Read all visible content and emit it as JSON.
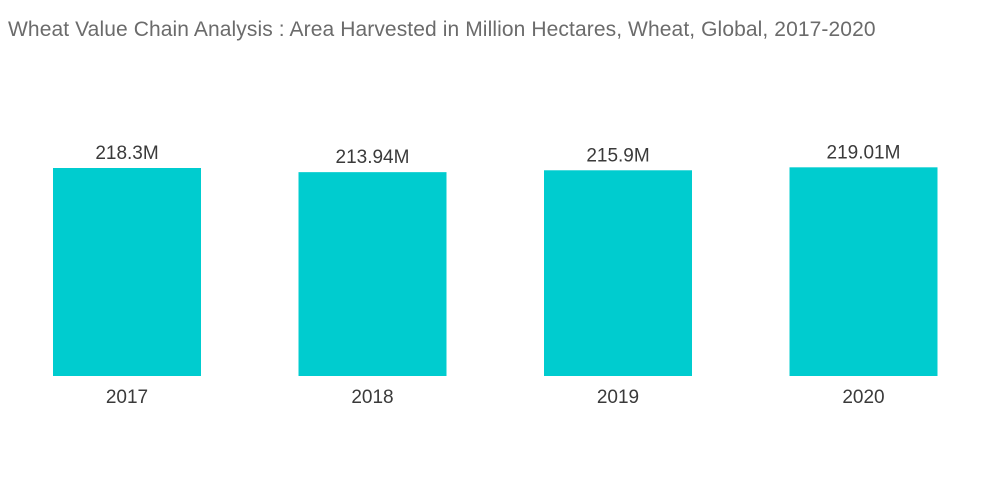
{
  "chart_data": {
    "type": "bar",
    "title": "Wheat Value Chain Analysis : Area Harvested in Million Hectares, Wheat, Global, 2017-2020",
    "categories": [
      "2017",
      "2018",
      "2019",
      "2020"
    ],
    "values": [
      218.3,
      213.94,
      215.9,
      219.01
    ],
    "value_labels": [
      "218.3M",
      "213.94M",
      "215.9M",
      "219.01M"
    ],
    "xlabel": "",
    "ylabel": "",
    "grid": false,
    "legend": "none",
    "bar_color": "#00cccf"
  }
}
